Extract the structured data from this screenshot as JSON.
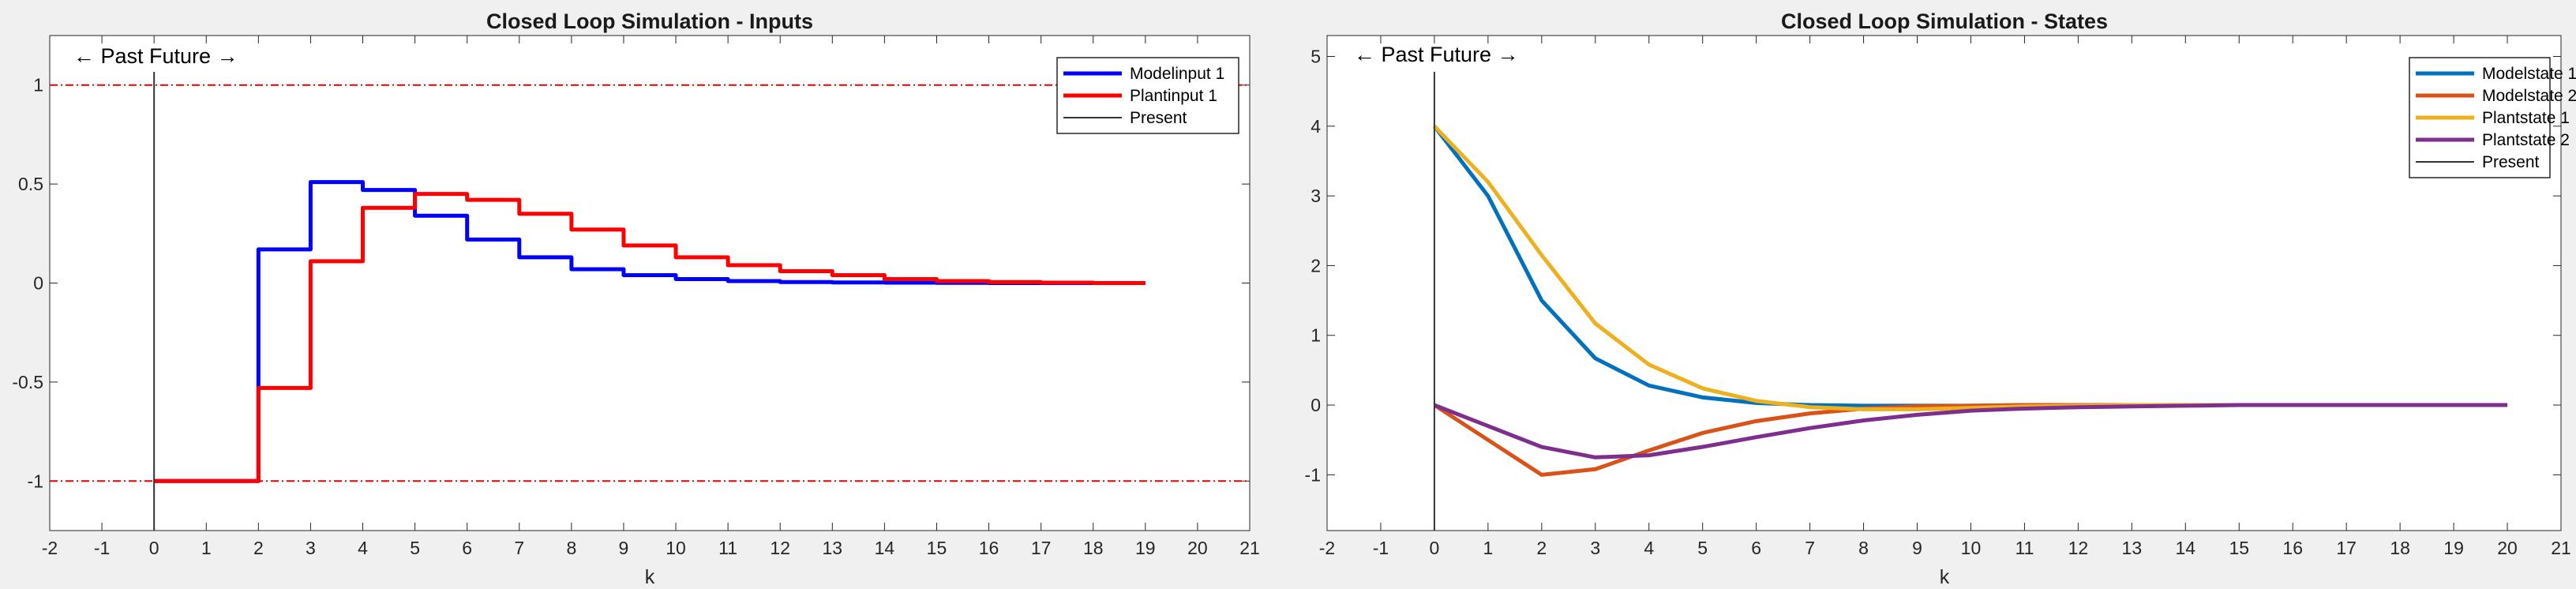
{
  "chart_data": [
    {
      "type": "line",
      "step": true,
      "title": "Closed Loop Simulation - Inputs",
      "xlabel": "k",
      "ylabel": "",
      "xlim": [
        -2,
        21
      ],
      "ylim": [
        -1.25,
        1.25
      ],
      "xticks": [
        -2,
        -1,
        0,
        1,
        2,
        3,
        4,
        5,
        6,
        7,
        8,
        9,
        10,
        11,
        12,
        13,
        14,
        15,
        16,
        17,
        18,
        19,
        20,
        21
      ],
      "xtick_labels": [
        "-2",
        "-1",
        "0",
        "1",
        "2",
        "3",
        "4",
        "5",
        "6",
        "7",
        "8",
        "9",
        "10",
        "11",
        "12",
        "13",
        "14",
        "15",
        "16",
        "17",
        "18",
        "19",
        "20",
        "21"
      ],
      "yticks": [
        -1,
        -0.5,
        0,
        0.5,
        1
      ],
      "ytick_labels": [
        "-1",
        "-0.5",
        "0",
        "0.5",
        "1"
      ],
      "annotation": "← Past Future →",
      "present_x": 0,
      "constraints": [
        1,
        -1
      ],
      "constraint_color": "#e60000",
      "legend_position": "top-right",
      "legend": [
        "Modelinput 1",
        "Plantinput 1",
        "Present"
      ],
      "series": [
        {
          "name": "Modelinput 1",
          "color": "#0000ff",
          "x": [
            0,
            1,
            2,
            3,
            4,
            5,
            6,
            7,
            8,
            9,
            10,
            11,
            12,
            13,
            14,
            15,
            16,
            17,
            18,
            19
          ],
          "values": [
            -1,
            -1,
            0.17,
            0.51,
            0.47,
            0.34,
            0.22,
            0.13,
            0.07,
            0.04,
            0.02,
            0.01,
            0.005,
            0.003,
            0.002,
            0.001,
            0,
            0,
            0,
            0
          ]
        },
        {
          "name": "Plantinput 1",
          "color": "#ff0000",
          "x": [
            0,
            1,
            2,
            3,
            4,
            5,
            6,
            7,
            8,
            9,
            10,
            11,
            12,
            13,
            14,
            15,
            16,
            17,
            18,
            19
          ],
          "values": [
            -1,
            -1,
            -0.53,
            0.11,
            0.38,
            0.45,
            0.42,
            0.35,
            0.27,
            0.19,
            0.13,
            0.09,
            0.06,
            0.04,
            0.02,
            0.01,
            0.005,
            0.002,
            0,
            0
          ]
        }
      ]
    },
    {
      "type": "line",
      "step": false,
      "title": "Closed Loop Simulation - States",
      "xlabel": "k",
      "ylabel": "",
      "xlim": [
        -2,
        21
      ],
      "ylim": [
        -1.8,
        5.3
      ],
      "xticks": [
        -2,
        -1,
        0,
        1,
        2,
        3,
        4,
        5,
        6,
        7,
        8,
        9,
        10,
        11,
        12,
        13,
        14,
        15,
        16,
        17,
        18,
        19,
        20,
        21
      ],
      "xtick_labels": [
        "-2",
        "-1",
        "0",
        "1",
        "2",
        "3",
        "4",
        "5",
        "6",
        "7",
        "8",
        "9",
        "10",
        "11",
        "12",
        "13",
        "14",
        "15",
        "16",
        "17",
        "18",
        "19",
        "20",
        "21"
      ],
      "yticks": [
        -1,
        0,
        1,
        2,
        3,
        4,
        5
      ],
      "ytick_labels": [
        "-1",
        "0",
        "1",
        "2",
        "3",
        "4",
        "5"
      ],
      "annotation": "← Past Future →",
      "present_x": 0,
      "legend_position": "top-right",
      "legend": [
        "Modelstate 1",
        "Modelstate 2",
        "Plantstate 1",
        "Plantstate 2",
        "Present"
      ],
      "series": [
        {
          "name": "Modelstate 1",
          "color": "#0072bd",
          "x": [
            0,
            1,
            2,
            3,
            4,
            5,
            6,
            7,
            8,
            9,
            10,
            11,
            12,
            13,
            14,
            15,
            16,
            17,
            18,
            19,
            20
          ],
          "values": [
            4,
            3,
            1.5,
            0.67,
            0.28,
            0.11,
            0.03,
            0,
            -0.01,
            -0.01,
            -0.01,
            0,
            0,
            0,
            0,
            0,
            0,
            0,
            0,
            0,
            0
          ]
        },
        {
          "name": "Modelstate 2",
          "color": "#d95319",
          "x": [
            0,
            1,
            2,
            3,
            4,
            5,
            6,
            7,
            8,
            9,
            10,
            11,
            12,
            13,
            14,
            15,
            16,
            17,
            18,
            19,
            20
          ],
          "values": [
            0,
            -0.5,
            -1,
            -0.92,
            -0.65,
            -0.4,
            -0.23,
            -0.12,
            -0.05,
            -0.02,
            -0.01,
            0,
            0,
            0,
            0,
            0,
            0,
            0,
            0,
            0,
            0
          ]
        },
        {
          "name": "Plantstate 1",
          "color": "#edb120",
          "x": [
            0,
            1,
            2,
            3,
            4,
            5,
            6,
            7,
            8,
            9,
            10,
            11,
            12,
            13,
            14,
            15,
            16,
            17,
            18,
            19,
            20
          ],
          "values": [
            4,
            3.2,
            2.15,
            1.17,
            0.58,
            0.24,
            0.06,
            -0.03,
            -0.06,
            -0.06,
            -0.04,
            -0.02,
            -0.01,
            0,
            0,
            0,
            0,
            0,
            0,
            0,
            0
          ]
        },
        {
          "name": "Plantstate 2",
          "color": "#7e2f8e",
          "x": [
            0,
            1,
            2,
            3,
            4,
            5,
            6,
            7,
            8,
            9,
            10,
            11,
            12,
            13,
            14,
            15,
            16,
            17,
            18,
            19,
            20
          ],
          "values": [
            0,
            -0.3,
            -0.6,
            -0.75,
            -0.72,
            -0.6,
            -0.46,
            -0.33,
            -0.22,
            -0.14,
            -0.08,
            -0.05,
            -0.03,
            -0.02,
            -0.01,
            0,
            0,
            0,
            0,
            0,
            0
          ]
        }
      ]
    }
  ]
}
